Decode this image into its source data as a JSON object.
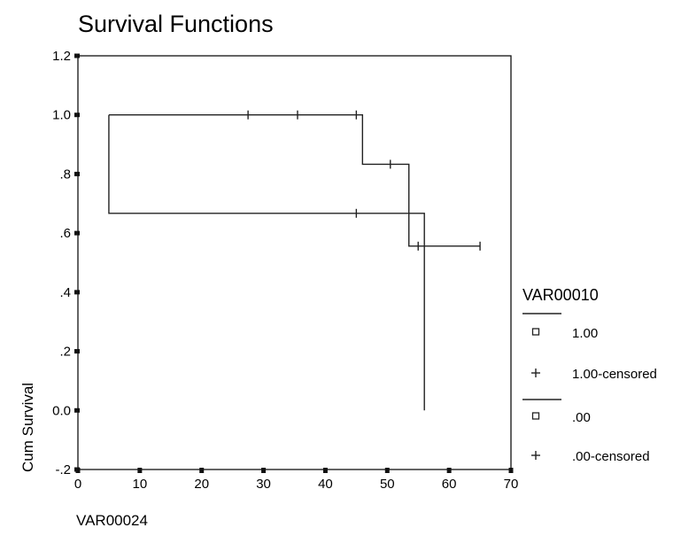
{
  "chart_data": {
    "type": "line",
    "title": "Survival Functions",
    "xlabel": "VAR00024",
    "ylabel": "Cum Survival",
    "xlim": [
      0,
      70
    ],
    "ylim": [
      -0.2,
      1.2
    ],
    "x_ticks": [
      0,
      10,
      20,
      30,
      40,
      50,
      60,
      70
    ],
    "x_tick_labels": [
      "0",
      "10",
      "20",
      "30",
      "40",
      "50",
      "60",
      "70"
    ],
    "y_ticks": [
      1.2,
      1.0,
      0.8,
      0.6,
      0.4,
      0.2,
      0.0,
      -0.2
    ],
    "y_tick_labels": [
      "1.2",
      "1.0",
      ".8",
      ".6",
      ".4",
      ".2",
      "0.0",
      "-.2"
    ],
    "grid": false,
    "legend": {
      "title": "VAR00010",
      "position": "right",
      "entries": [
        {
          "label": "1.00",
          "marker": "square"
        },
        {
          "label": "1.00-censored",
          "marker": "plus"
        },
        {
          "label": ".00",
          "marker": "square"
        },
        {
          "label": ".00-censored",
          "marker": "plus"
        }
      ]
    },
    "series": [
      {
        "name": "1.00",
        "steps": [
          [
            5,
            1.0
          ],
          [
            46,
            0.833
          ],
          [
            53.5,
            0.556
          ],
          [
            65,
            0.556
          ]
        ],
        "censored": [
          [
            27.5,
            1.0
          ],
          [
            35.5,
            1.0
          ],
          [
            45,
            1.0
          ],
          [
            50.5,
            0.833
          ],
          [
            55,
            0.556
          ],
          [
            65,
            0.556
          ]
        ]
      },
      {
        "name": ".00",
        "steps": [
          [
            5,
            0.667
          ],
          [
            56,
            0.0
          ]
        ],
        "censored": [
          [
            45,
            0.667
          ]
        ]
      }
    ]
  }
}
